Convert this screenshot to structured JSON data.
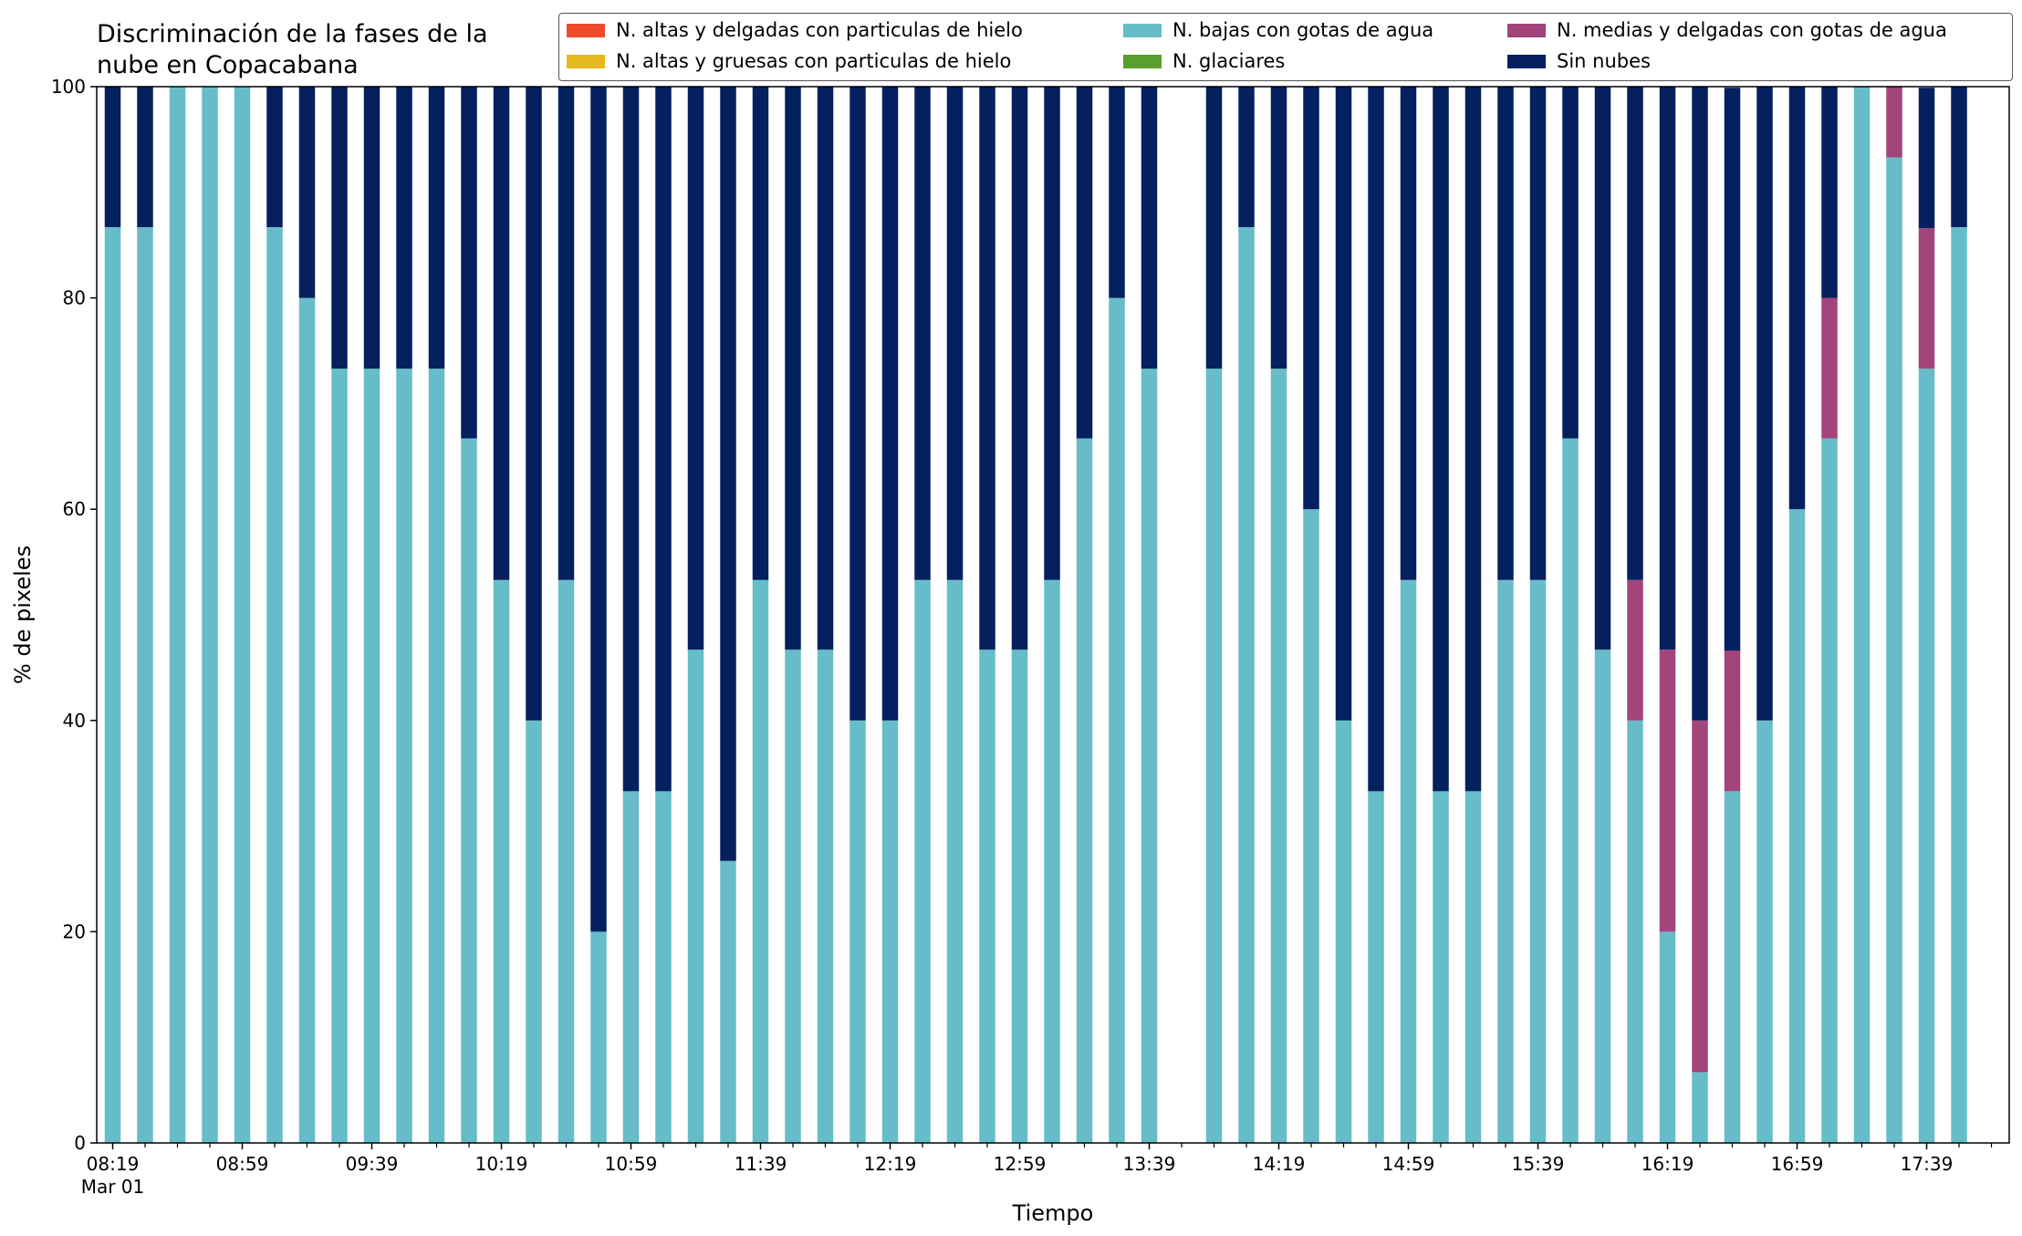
{
  "chart_data": {
    "type": "bar",
    "stacked": true,
    "title": "Discriminación de la fases de la nube en Copacabana",
    "title_lines": [
      "Discriminación de la fases de la",
      "nube en Copacabana"
    ],
    "xlabel": "Tiempo",
    "ylabel": "% de pixeles",
    "ylim": [
      0,
      100
    ],
    "yticks": [
      0,
      20,
      40,
      60,
      80,
      100
    ],
    "xtick_labels": [
      "08:19",
      "08:59",
      "09:39",
      "10:19",
      "10:59",
      "11:39",
      "12:19",
      "12:59",
      "13:39",
      "14:19",
      "14:59",
      "15:39",
      "16:19",
      "16:59",
      "17:39"
    ],
    "date_label": "Mar 01",
    "legend_position": "top",
    "grid": false,
    "categories": [
      "08:19",
      "08:29",
      "08:39",
      "08:49",
      "08:59",
      "09:09",
      "09:19",
      "09:29",
      "09:39",
      "09:49",
      "09:59",
      "10:09",
      "10:19",
      "10:29",
      "10:39",
      "10:49",
      "10:59",
      "11:09",
      "11:19",
      "11:29",
      "11:39",
      "11:49",
      "11:59",
      "12:09",
      "12:19",
      "12:29",
      "12:39",
      "12:49",
      "12:59",
      "13:09",
      "13:19",
      "13:29",
      "13:39",
      "13:49",
      "13:59",
      "14:09",
      "14:19",
      "14:29",
      "14:39",
      "14:49",
      "14:59",
      "15:09",
      "15:19",
      "15:29",
      "15:39",
      "15:49",
      "15:59",
      "16:09",
      "16:19",
      "16:29",
      "16:39",
      "16:49",
      "16:59",
      "17:09",
      "17:19",
      "17:29",
      "17:39",
      "17:49"
    ],
    "series": [
      {
        "name": "N. altas y delgadas con particulas de hielo",
        "color": "#ef4a2b",
        "values": [
          0,
          0,
          0,
          0,
          0,
          0,
          0,
          0,
          0,
          0,
          0,
          0,
          0,
          0,
          0,
          0,
          0,
          0,
          0,
          0,
          0,
          0,
          0,
          0,
          0,
          0,
          0,
          0,
          0,
          0,
          0,
          0,
          0,
          0,
          0,
          0,
          0,
          0,
          0,
          0,
          0,
          0,
          0,
          0,
          0,
          0,
          0,
          0,
          0,
          0,
          0,
          0,
          0,
          0,
          0,
          0,
          0,
          0
        ]
      },
      {
        "name": "N. altas y gruesas con particulas de hielo",
        "color": "#e6b91e",
        "values": [
          0,
          0,
          0,
          0,
          0,
          0,
          0,
          0,
          0,
          0,
          0,
          0,
          0,
          0,
          0,
          0,
          0,
          0,
          0,
          0,
          0,
          0,
          0,
          0,
          0,
          0,
          0,
          0,
          0,
          0,
          0,
          0,
          0,
          0,
          0,
          0,
          0,
          0,
          0,
          0,
          0,
          0,
          0,
          0,
          0,
          0,
          0,
          0,
          0,
          0,
          0,
          0,
          0,
          0,
          0,
          0,
          0,
          0
        ]
      },
      {
        "name": "N. bajas con gotas de agua",
        "color": "#66bdc9",
        "values": [
          86.7,
          86.7,
          100,
          100,
          100,
          86.7,
          80,
          73.3,
          73.3,
          73.3,
          73.3,
          66.7,
          53.3,
          40,
          53.3,
          20,
          33.3,
          33.3,
          46.7,
          26.7,
          53.3,
          46.7,
          46.7,
          40,
          40,
          53.3,
          53.3,
          46.7,
          46.7,
          53.3,
          66.7,
          80,
          73.3,
          0,
          73.3,
          86.7,
          73.3,
          60,
          40,
          33.3,
          53.3,
          33.3,
          33.3,
          53.3,
          53.3,
          66.7,
          46.7,
          40,
          20,
          6.7,
          33.3,
          40,
          60,
          66.7,
          100,
          93.3,
          73.3,
          86.7
        ]
      },
      {
        "name": "N. glaciares",
        "color": "#5a9e2f",
        "values": [
          0,
          0,
          0,
          0,
          0,
          0,
          0,
          0,
          0,
          0,
          0,
          0,
          0,
          0,
          0,
          0,
          0,
          0,
          0,
          0,
          0,
          0,
          0,
          0,
          0,
          0,
          0,
          0,
          0,
          0,
          0,
          0,
          0,
          0,
          0,
          0,
          0,
          0,
          0,
          0,
          0,
          0,
          0,
          0,
          0,
          0,
          0,
          0,
          0,
          0,
          0,
          0,
          0,
          0,
          0,
          0,
          0,
          0
        ]
      },
      {
        "name": "N. medias y delgadas con gotas de agua",
        "color": "#a3447a",
        "values": [
          0,
          0,
          0,
          0,
          0,
          0,
          0,
          0,
          0,
          0,
          0,
          0,
          0,
          0,
          0,
          0,
          0,
          0,
          0,
          0,
          0,
          0,
          0,
          0,
          0,
          0,
          0,
          0,
          0,
          0,
          0,
          0,
          0,
          0,
          0,
          0,
          0,
          0,
          0,
          0,
          0,
          0,
          0,
          0,
          0,
          0,
          0,
          13.3,
          26.7,
          33.3,
          13.3,
          0,
          0,
          13.3,
          0,
          6.7,
          13.3,
          0
        ]
      },
      {
        "name": "Sin nubes",
        "color": "#04205e",
        "values": [
          13.3,
          13.3,
          0,
          0,
          0,
          13.3,
          20,
          26.7,
          26.7,
          26.7,
          26.7,
          33.3,
          46.7,
          60,
          46.7,
          80,
          66.7,
          66.7,
          53.3,
          73.3,
          46.7,
          53.3,
          53.3,
          60,
          60,
          46.7,
          46.7,
          53.3,
          53.3,
          46.7,
          33.3,
          20,
          26.7,
          0,
          26.7,
          13.3,
          26.7,
          40,
          60,
          66.7,
          46.7,
          66.7,
          66.7,
          46.7,
          46.7,
          33.3,
          53.3,
          46.7,
          53.3,
          60,
          53.3,
          60,
          40,
          20,
          0,
          0,
          13.3,
          13.3
        ]
      }
    ]
  }
}
